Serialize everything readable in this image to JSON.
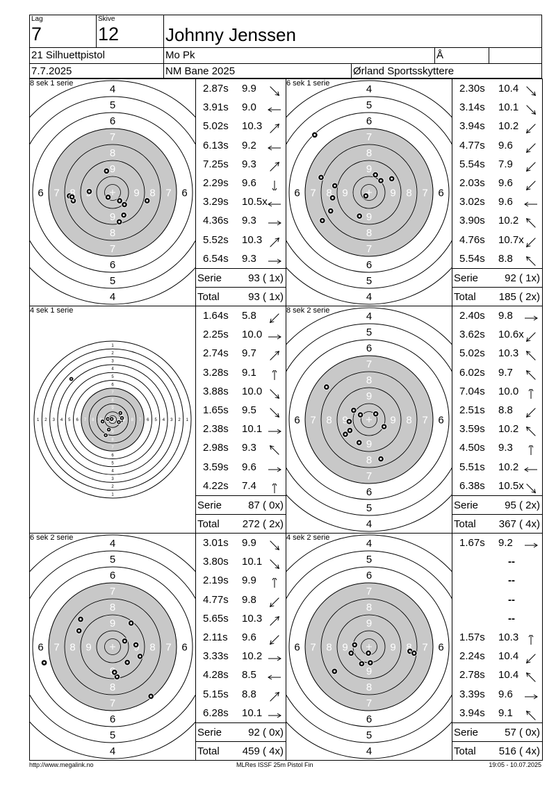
{
  "header": {
    "lag_label": "Lag",
    "lag_value": "7",
    "skive_label": "Skive",
    "skive_value": "12",
    "shooter_name": "Johnny Jenssen",
    "class": "21 Silhuettpistol",
    "club": "Mo Pk",
    "extra_label": "Å",
    "date": "7.7.2025",
    "event": "NM Bane 2025",
    "organizer": "Ørland Sportsskyttere"
  },
  "series": [
    {
      "label": "8 sek 1 serie",
      "small_target": false,
      "shots": [
        {
          "time": "2.87s",
          "value": "9.9",
          "dir": "se"
        },
        {
          "time": "3.91s",
          "value": "9.0",
          "dir": "w"
        },
        {
          "time": "5.02s",
          "value": "10.3",
          "dir": "ne"
        },
        {
          "time": "6.13s",
          "value": "9.2",
          "dir": "w"
        },
        {
          "time": "7.25s",
          "value": "9.3",
          "dir": "ne"
        },
        {
          "time": "2.29s",
          "value": "9.6",
          "dir": "s"
        },
        {
          "time": "3.29s",
          "value": "10.5x",
          "dir": "w"
        },
        {
          "time": "4.36s",
          "value": "9.3",
          "dir": "e"
        },
        {
          "time": "5.52s",
          "value": "10.3",
          "dir": "ne"
        },
        {
          "time": "6.54s",
          "value": "9.3",
          "dir": "e"
        }
      ],
      "serie_label": "Serie",
      "serie_value": "93 ( 1x)",
      "total_label": "Total",
      "total_value": "93 ( 1x)",
      "hits": [
        [
          -0.19,
          -0.67
        ],
        [
          -0.73,
          -0.03
        ],
        [
          0.35,
          0.71
        ],
        [
          -1.23,
          0.26
        ],
        [
          -1.35,
          0.11
        ],
        [
          0.22,
          0.26
        ],
        [
          -0.14,
          0.15
        ],
        [
          0.37,
          0.38
        ],
        [
          1.08,
          0.26
        ],
        [
          0.21,
          0.92
        ],
        [
          -1.27,
          0.14
        ]
      ]
    },
    {
      "label": "6 sek 1 serie",
      "small_target": false,
      "shots": [
        {
          "time": "2.30s",
          "value": "10.4",
          "dir": "se"
        },
        {
          "time": "3.14s",
          "value": "10.1",
          "dir": "se"
        },
        {
          "time": "3.94s",
          "value": "10.2",
          "dir": "sw"
        },
        {
          "time": "4.77s",
          "value": "9.6",
          "dir": "sw"
        },
        {
          "time": "5.54s",
          "value": "7.9",
          "dir": "sw"
        },
        {
          "time": "2.03s",
          "value": "9.6",
          "dir": "sw"
        },
        {
          "time": "3.02s",
          "value": "9.6",
          "dir": "w"
        },
        {
          "time": "3.90s",
          "value": "10.2",
          "dir": "nw"
        },
        {
          "time": "4.76s",
          "value": "10.7x",
          "dir": "sw"
        },
        {
          "time": "5.54s",
          "value": "8.8",
          "dir": "nw"
        }
      ],
      "serie_label": "Serie",
      "serie_value": "92 ( 1x)",
      "total_label": "Total",
      "total_value": "185 ( 2x)",
      "hits": [
        [
          -1.46,
          0.88
        ],
        [
          -1.2,
          0.58
        ],
        [
          -1.14,
          0.17
        ],
        [
          -0.3,
          0.74
        ],
        [
          -0.1,
          0.11
        ],
        [
          -1.07,
          -0.21
        ],
        [
          -1.5,
          -0.47
        ],
        [
          0.37,
          -0.37
        ],
        [
          0.71,
          -0.43
        ],
        [
          0.2,
          -0.55
        ],
        [
          -1.7,
          -1.8
        ]
      ]
    },
    {
      "label": "4 sek 1 serie",
      "small_target": true,
      "shots": [
        {
          "time": "1.64s",
          "value": "5.8",
          "dir": "sw"
        },
        {
          "time": "2.25s",
          "value": "10.0",
          "dir": "e"
        },
        {
          "time": "2.74s",
          "value": "9.7",
          "dir": "ne"
        },
        {
          "time": "3.28s",
          "value": "9.1",
          "dir": "n"
        },
        {
          "time": "3.88s",
          "value": "10.0",
          "dir": "se"
        },
        {
          "time": "1.65s",
          "value": "9.5",
          "dir": "se"
        },
        {
          "time": "2.38s",
          "value": "10.1",
          "dir": "e"
        },
        {
          "time": "2.98s",
          "value": "9.3",
          "dir": "nw"
        },
        {
          "time": "3.59s",
          "value": "9.6",
          "dir": "e"
        },
        {
          "time": "4.22s",
          "value": "7.4",
          "dir": "n"
        }
      ],
      "serie_label": "Serie",
      "serie_value": "87 ( 0x)",
      "total_label": "Total",
      "total_value": "272 ( 2x)",
      "hits": [
        [
          -0.12,
          0.32
        ],
        [
          -0.22,
          0.5
        ],
        [
          -0.15,
          -0.02
        ],
        [
          -0.03,
          -0.02
        ],
        [
          0.27,
          0.03
        ],
        [
          0.3,
          -0.05
        ],
        [
          0.25,
          -0.21
        ],
        [
          -0.32,
          0.06
        ],
        [
          0.2,
          0.08
        ],
        [
          -1.32,
          -1.3
        ]
      ]
    },
    {
      "label": "8 sek 2 serie",
      "small_target": false,
      "shots": [
        {
          "time": "2.40s",
          "value": "9.8",
          "dir": "e"
        },
        {
          "time": "3.62s",
          "value": "10.6x",
          "dir": "sw"
        },
        {
          "time": "5.02s",
          "value": "10.3",
          "dir": "nw"
        },
        {
          "time": "6.02s",
          "value": "9.7",
          "dir": "nw"
        },
        {
          "time": "7.04s",
          "value": "10.0",
          "dir": "n"
        },
        {
          "time": "2.51s",
          "value": "8.8",
          "dir": "sw"
        },
        {
          "time": "3.59s",
          "value": "10.2",
          "dir": "nw"
        },
        {
          "time": "4.50s",
          "value": "9.3",
          "dir": "n"
        },
        {
          "time": "5.51s",
          "value": "10.2",
          "dir": "w"
        },
        {
          "time": "6.38s",
          "value": "10.5x",
          "dir": "se"
        }
      ],
      "serie_label": "Serie",
      "serie_value": "95 ( 2x)",
      "total_label": "Total",
      "total_value": "367 ( 4x)",
      "hits": [
        [
          0.37,
          1.23
        ],
        [
          -0.74,
          0.46
        ],
        [
          -0.6,
          0.34
        ],
        [
          -0.62,
          0.06
        ],
        [
          -0.31,
          0.72
        ],
        [
          -0.27,
          -0.15
        ],
        [
          0.21,
          -0.18
        ],
        [
          0.47,
          0.22
        ],
        [
          -0.48,
          -0.29
        ],
        [
          -1.33,
          -1.02
        ]
      ]
    },
    {
      "label": "6 sek 2 serie",
      "small_target": false,
      "shots": [
        {
          "time": "3.01s",
          "value": "9.9",
          "dir": "se"
        },
        {
          "time": "3.80s",
          "value": "10.1",
          "dir": "se"
        },
        {
          "time": "2.19s",
          "value": "9.9",
          "dir": "n"
        },
        {
          "time": "4.77s",
          "value": "9.8",
          "dir": "sw"
        },
        {
          "time": "5.65s",
          "value": "10.3",
          "dir": "ne"
        },
        {
          "time": "2.11s",
          "value": "9.6",
          "dir": "sw"
        },
        {
          "time": "3.33s",
          "value": "10.2",
          "dir": "e"
        },
        {
          "time": "4.28s",
          "value": "8.5",
          "dir": "w"
        },
        {
          "time": "5.15s",
          "value": "8.8",
          "dir": "ne"
        },
        {
          "time": "6.28s",
          "value": "10.1",
          "dir": "e"
        }
      ],
      "serie_label": "Serie",
      "serie_value": "92 ( 0x)",
      "total_label": "Total",
      "total_value": "459 ( 4x)",
      "hits": [
        [
          1.2,
          1.55
        ],
        [
          0.14,
          0.94
        ],
        [
          0.46,
          0.49
        ],
        [
          0.86,
          0.3
        ],
        [
          0.73,
          -0.06
        ],
        [
          0.38,
          -0.18
        ],
        [
          0.58,
          -0.74
        ],
        [
          -1.05,
          -0.5
        ],
        [
          -1.0,
          -0.86
        ],
        [
          -2.14,
          0.5
        ],
        [
          0.06,
          0.8
        ]
      ]
    },
    {
      "label": "4 sek 2 serie",
      "small_target": false,
      "shots": [
        {
          "time": "1.67s",
          "value": "9.2",
          "dir": "e"
        },
        {
          "time": "",
          "value": "--",
          "dir": ""
        },
        {
          "time": "",
          "value": "--",
          "dir": ""
        },
        {
          "time": "",
          "value": "--",
          "dir": ""
        },
        {
          "time": "",
          "value": "--",
          "dir": ""
        },
        {
          "time": "1.57s",
          "value": "10.3",
          "dir": "n"
        },
        {
          "time": "2.24s",
          "value": "10.4",
          "dir": "sw"
        },
        {
          "time": "2.78s",
          "value": "10.4",
          "dir": "nw"
        },
        {
          "time": "3.39s",
          "value": "9.6",
          "dir": "e"
        },
        {
          "time": "3.94s",
          "value": "9.1",
          "dir": "nw"
        }
      ],
      "serie_label": "Serie",
      "serie_value": "57 ( 0x)",
      "total_label": "Total",
      "total_value": "516 ( 4x)",
      "hits": [
        [
          -1.08,
          0.77
        ],
        [
          -0.56,
          0.2
        ],
        [
          -0.23,
          0.53
        ],
        [
          0.04,
          0.5
        ],
        [
          -0.45,
          -0.06
        ],
        [
          1.28,
          0.14
        ],
        [
          1.41,
          0.2
        ],
        [
          -0.02,
          0.2
        ]
      ]
    }
  ],
  "footer": {
    "left": "http://www.megalink.no",
    "center": "MLRes ISSF 25m Pistol Fin",
    "right": "19:05 - 10.07.2025"
  }
}
